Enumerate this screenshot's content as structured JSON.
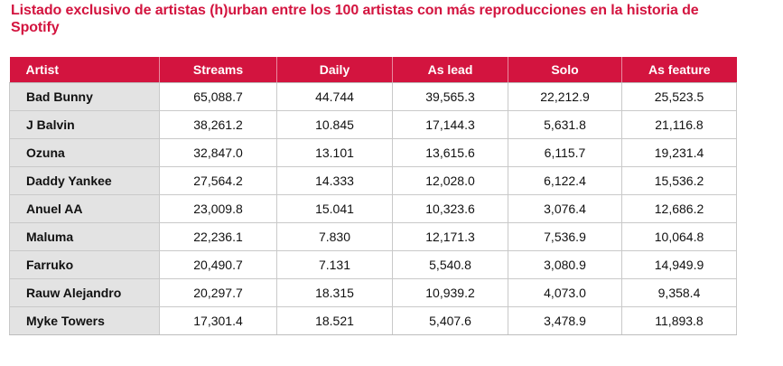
{
  "title": "Listado exclusivo de artistas (h)urban entre los 100 artistas con más reproducciones en la historia de Spotify",
  "colors": {
    "accent": "#d3143f",
    "artist_cell_bg": "#e3e3e3"
  },
  "table": {
    "headers": [
      "Artist",
      "Streams",
      "Daily",
      "As lead",
      "Solo",
      "As feature"
    ],
    "rows": [
      [
        "Bad Bunny",
        "65,088.7",
        "44.744",
        "39,565.3",
        "22,212.9",
        "25,523.5"
      ],
      [
        "J Balvin",
        "38,261.2",
        "10.845",
        "17,144.3",
        "5,631.8",
        "21,116.8"
      ],
      [
        "Ozuna",
        "32,847.0",
        "13.101",
        "13,615.6",
        "6,115.7",
        "19,231.4"
      ],
      [
        "Daddy Yankee",
        "27,564.2",
        "14.333",
        "12,028.0",
        "6,122.4",
        "15,536.2"
      ],
      [
        "Anuel AA",
        "23,009.8",
        "15.041",
        "10,323.6",
        "3,076.4",
        "12,686.2"
      ],
      [
        "Maluma",
        "22,236.1",
        "7.830",
        "12,171.3",
        "7,536.9",
        "10,064.8"
      ],
      [
        "Farruko",
        "20,490.7",
        "7.131",
        "5,540.8",
        "3,080.9",
        "14,949.9"
      ],
      [
        "Rauw Alejandro",
        "20,297.7",
        "18.315",
        "10,939.2",
        "4,073.0",
        "9,358.4"
      ],
      [
        "Myke Towers",
        "17,301.4",
        "18.521",
        "5,407.6",
        "3,478.9",
        "11,893.8"
      ]
    ]
  }
}
